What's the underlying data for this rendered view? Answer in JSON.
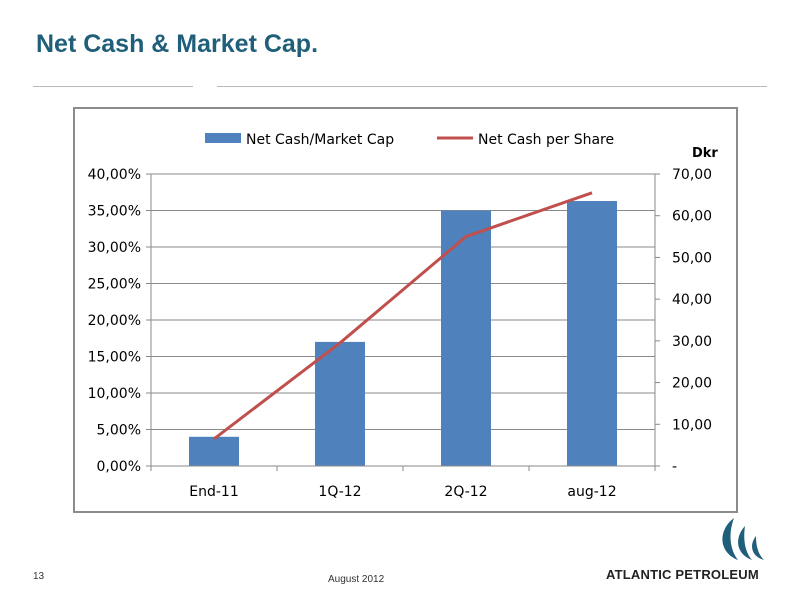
{
  "slide": {
    "title": "Net Cash & Market Cap.",
    "page_number": "13",
    "date": "August 2012",
    "brand": "ATLANTIC PETROLEUM"
  },
  "colors": {
    "title": "#1f5f7a",
    "bar": "#4f81bd",
    "line": "#c0504d",
    "logo": "#1f5f7a"
  },
  "chart_data": {
    "type": "bar",
    "categories": [
      "End-11",
      "1Q-12",
      "2Q-12",
      "aug-12"
    ],
    "series": [
      {
        "name": "Net Cash/Market Cap",
        "type": "bar",
        "axis": "left",
        "values": [
          4.0,
          17.0,
          35.0,
          36.3
        ]
      },
      {
        "name": "Net Cash per Share",
        "type": "line",
        "axis": "right",
        "values": [
          6.5,
          29.5,
          55.0,
          65.5
        ]
      }
    ],
    "y_left": {
      "min": 0,
      "max": 40,
      "ticks": [
        "0,00%",
        "5,00%",
        "10,00%",
        "15,00%",
        "20,00%",
        "25,00%",
        "30,00%",
        "35,00%",
        "40,00%"
      ]
    },
    "y_right": {
      "label": "Dkr",
      "min": 0,
      "max": 70,
      "ticks": [
        "-",
        "10,00",
        "20,00",
        "30,00",
        "40,00",
        "50,00",
        "60,00",
        "70,00"
      ]
    },
    "grid": true,
    "legend_position": "top"
  }
}
